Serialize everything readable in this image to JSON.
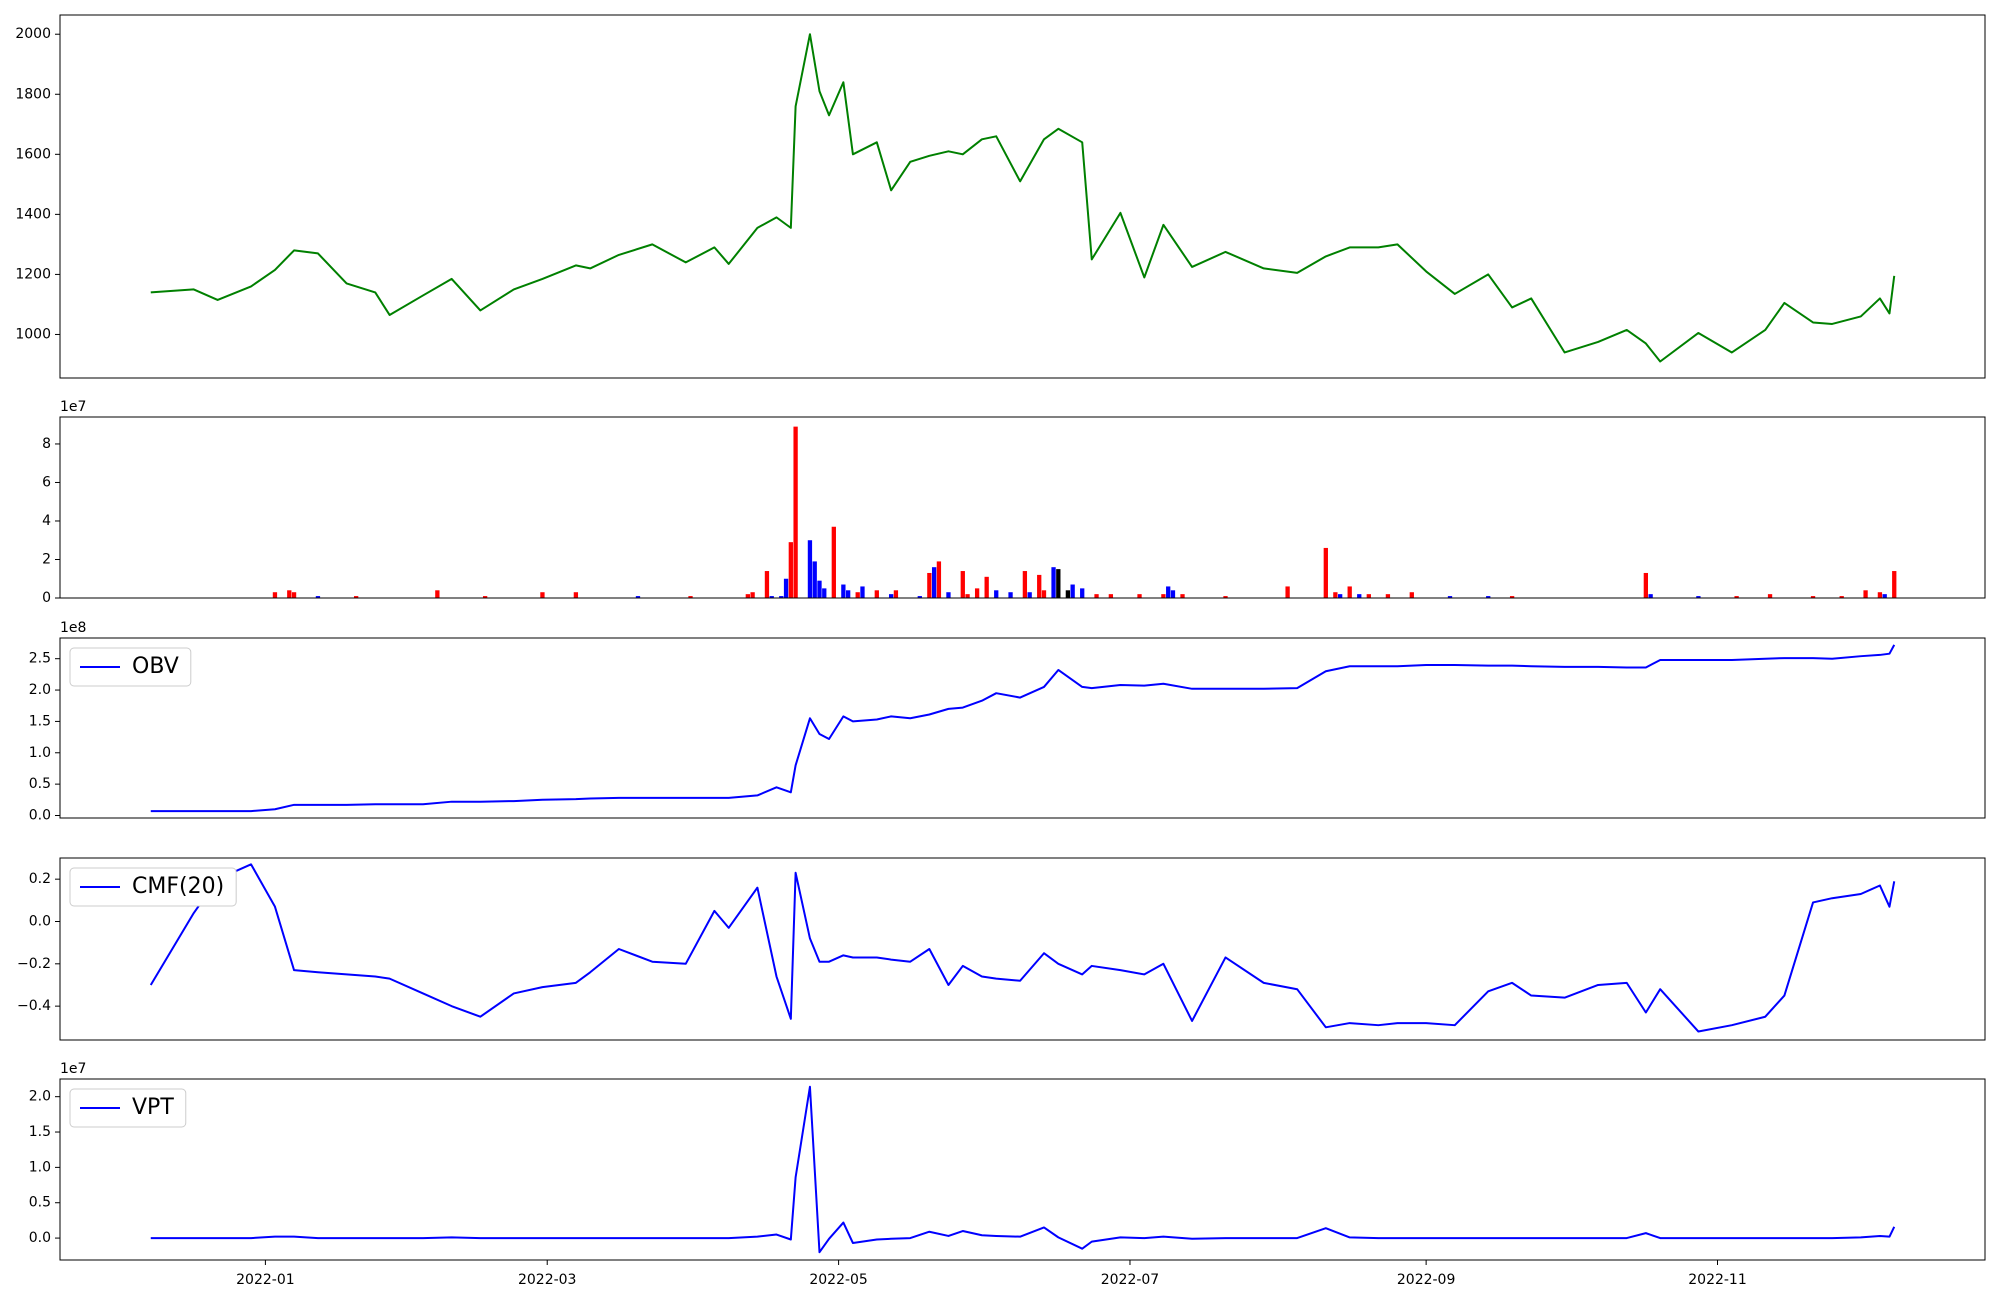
{
  "chart_data": [
    {
      "type": "line",
      "x": [
        "2021-12-08",
        "2021-12-17",
        "2021-12-22",
        "2021-12-29",
        "2022-01-03",
        "2022-01-07",
        "2022-01-12",
        "2022-01-18",
        "2022-01-24",
        "2022-01-27",
        "2022-02-03",
        "2022-02-09",
        "2022-02-15",
        "2022-02-22",
        "2022-02-28",
        "2022-03-07",
        "2022-03-10",
        "2022-03-16",
        "2022-03-23",
        "2022-03-30",
        "2022-04-05",
        "2022-04-08",
        "2022-04-14",
        "2022-04-18",
        "2022-04-21",
        "2022-04-22",
        "2022-04-25",
        "2022-04-27",
        "2022-04-29",
        "2022-05-02",
        "2022-05-04",
        "2022-05-09",
        "2022-05-12",
        "2022-05-16",
        "2022-05-20",
        "2022-05-24",
        "2022-05-27",
        "2022-05-31",
        "2022-06-03",
        "2022-06-08",
        "2022-06-13",
        "2022-06-16",
        "2022-06-21",
        "2022-06-23",
        "2022-06-29",
        "2022-07-04",
        "2022-07-08",
        "2022-07-14",
        "2022-07-21",
        "2022-07-29",
        "2022-08-05",
        "2022-08-11",
        "2022-08-16",
        "2022-08-22",
        "2022-08-26",
        "2022-09-01",
        "2022-09-07",
        "2022-09-14",
        "2022-09-19",
        "2022-09-23",
        "2022-09-30",
        "2022-10-07",
        "2022-10-13",
        "2022-10-17",
        "2022-10-20",
        "2022-10-28",
        "2022-11-04",
        "2022-11-11",
        "2022-11-15",
        "2022-11-21",
        "2022-11-25",
        "2022-12-01",
        "2022-12-05",
        "2022-12-07",
        "2022-12-08"
      ],
      "series": [
        {
          "color": "#008000",
          "values": [
            1140,
            1150,
            1115,
            1160,
            1215,
            1280,
            1270,
            1170,
            1140,
            1065,
            1130,
            1185,
            1080,
            1150,
            1185,
            1230,
            1220,
            1265,
            1300,
            1240,
            1290,
            1235,
            1355,
            1390,
            1355,
            1760,
            2000,
            1810,
            1730,
            1840,
            1600,
            1640,
            1480,
            1575,
            1595,
            1610,
            1600,
            1650,
            1660,
            1510,
            1650,
            1685,
            1640,
            1250,
            1405,
            1190,
            1365,
            1225,
            1275,
            1220,
            1205,
            1260,
            1290,
            1290,
            1300,
            1210,
            1135,
            1200,
            1090,
            1120,
            940,
            975,
            1015,
            970,
            910,
            1005,
            940,
            1015,
            1105,
            1040,
            1035,
            1060,
            1120,
            1070,
            1195
          ]
        }
      ],
      "xlim": [
        "2021-11-19",
        "2022-12-27"
      ],
      "ylim": [
        855,
        2064
      ],
      "yticks": [
        1000,
        1200,
        1400,
        1600,
        1800,
        2000
      ]
    },
    {
      "type": "bar",
      "offset_label": "1e7",
      "x": [
        "2022-01-03",
        "2022-01-06",
        "2022-01-07",
        "2022-01-12",
        "2022-01-20",
        "2022-02-06",
        "2022-02-16",
        "2022-02-28",
        "2022-03-07",
        "2022-03-20",
        "2022-03-31",
        "2022-04-12",
        "2022-04-13",
        "2022-04-16",
        "2022-04-17",
        "2022-04-19",
        "2022-04-20",
        "2022-04-21",
        "2022-04-22",
        "2022-04-25",
        "2022-04-26",
        "2022-04-27",
        "2022-04-28",
        "2022-04-30",
        "2022-05-02",
        "2022-05-03",
        "2022-05-05",
        "2022-05-06",
        "2022-05-09",
        "2022-05-12",
        "2022-05-13",
        "2022-05-18",
        "2022-05-20",
        "2022-05-21",
        "2022-05-22",
        "2022-05-24",
        "2022-05-27",
        "2022-05-28",
        "2022-05-30",
        "2022-06-01",
        "2022-06-03",
        "2022-06-06",
        "2022-06-09",
        "2022-06-10",
        "2022-06-12",
        "2022-06-13",
        "2022-06-15",
        "2022-06-16",
        "2022-06-18",
        "2022-06-19",
        "2022-06-21",
        "2022-06-24",
        "2022-06-27",
        "2022-07-03",
        "2022-07-08",
        "2022-07-09",
        "2022-07-10",
        "2022-07-12",
        "2022-07-21",
        "2022-08-03",
        "2022-08-11",
        "2022-08-13",
        "2022-08-14",
        "2022-08-16",
        "2022-08-18",
        "2022-08-20",
        "2022-08-24",
        "2022-08-29",
        "2022-09-06",
        "2022-09-14",
        "2022-09-19",
        "2022-10-17",
        "2022-10-18",
        "2022-10-28",
        "2022-11-05",
        "2022-11-12",
        "2022-11-21",
        "2022-11-27",
        "2022-12-02",
        "2022-12-05",
        "2022-12-06",
        "2022-12-08"
      ],
      "values": [
        0.3,
        0.4,
        0.3,
        0.1,
        0.1,
        0.4,
        0.1,
        0.3,
        0.3,
        0.1,
        0.1,
        0.2,
        0.3,
        1.4,
        0.1,
        0.1,
        1.0,
        2.9,
        8.9,
        3.0,
        1.9,
        0.9,
        0.5,
        3.7,
        0.7,
        0.4,
        0.3,
        0.6,
        0.4,
        0.2,
        0.4,
        0.1,
        1.3,
        1.6,
        1.9,
        0.3,
        1.4,
        0.2,
        0.5,
        1.1,
        0.4,
        0.3,
        1.4,
        0.3,
        1.2,
        0.4,
        1.6,
        1.5,
        0.4,
        0.7,
        0.5,
        0.2,
        0.2,
        0.2,
        0.2,
        0.6,
        0.4,
        0.2,
        0.1,
        0.6,
        2.6,
        0.3,
        0.2,
        0.6,
        0.2,
        0.2,
        0.2,
        0.3,
        0.1,
        0.1,
        0.1,
        1.3,
        0.2,
        0.1,
        0.1,
        0.2,
        0.1,
        0.1,
        0.4,
        0.3,
        0.2,
        1.4
      ],
      "colors": [
        "#ff0000",
        "#ff0000",
        "#ff0000",
        "#0000ff",
        "#ff0000",
        "#ff0000",
        "#ff0000",
        "#ff0000",
        "#ff0000",
        "#0000ff",
        "#ff0000",
        "#ff0000",
        "#ff0000",
        "#ff0000",
        "#0000ff",
        "#0000ff",
        "#0000ff",
        "#ff0000",
        "#ff0000",
        "#0000ff",
        "#0000ff",
        "#0000ff",
        "#0000ff",
        "#ff0000",
        "#0000ff",
        "#0000ff",
        "#ff0000",
        "#0000ff",
        "#ff0000",
        "#0000ff",
        "#ff0000",
        "#0000ff",
        "#ff0000",
        "#0000ff",
        "#ff0000",
        "#0000ff",
        "#ff0000",
        "#ff0000",
        "#ff0000",
        "#ff0000",
        "#0000ff",
        "#0000ff",
        "#ff0000",
        "#0000ff",
        "#ff0000",
        "#ff0000",
        "#0000ff",
        "#000000",
        "#000000",
        "#0000ff",
        "#0000ff",
        "#ff0000",
        "#ff0000",
        "#ff0000",
        "#ff0000",
        "#0000ff",
        "#0000ff",
        "#ff0000",
        "#ff0000",
        "#ff0000",
        "#ff0000",
        "#ff0000",
        "#0000ff",
        "#ff0000",
        "#0000ff",
        "#ff0000",
        "#ff0000",
        "#ff0000",
        "#0000ff",
        "#0000ff",
        "#ff0000",
        "#ff0000",
        "#0000ff",
        "#0000ff",
        "#ff0000",
        "#ff0000",
        "#ff0000",
        "#ff0000",
        "#ff0000",
        "#ff0000",
        "#0000ff",
        "#ff0000"
      ],
      "xlim": [
        "2021-11-19",
        "2022-12-27"
      ],
      "ylim": [
        0,
        9.4
      ],
      "yticks": [
        {
          "value": 0,
          "label": "0"
        },
        2,
        4,
        6,
        8
      ]
    },
    {
      "type": "line",
      "offset_label": "1e8",
      "legend": "upper left",
      "x": [
        "2021-12-08",
        "2021-12-17",
        "2021-12-22",
        "2021-12-29",
        "2022-01-03",
        "2022-01-07",
        "2022-01-12",
        "2022-01-18",
        "2022-01-24",
        "2022-01-27",
        "2022-02-03",
        "2022-02-09",
        "2022-02-15",
        "2022-02-22",
        "2022-02-28",
        "2022-03-07",
        "2022-03-10",
        "2022-03-16",
        "2022-03-23",
        "2022-03-30",
        "2022-04-05",
        "2022-04-08",
        "2022-04-14",
        "2022-04-18",
        "2022-04-21",
        "2022-04-22",
        "2022-04-25",
        "2022-04-27",
        "2022-04-29",
        "2022-05-02",
        "2022-05-04",
        "2022-05-09",
        "2022-05-12",
        "2022-05-16",
        "2022-05-20",
        "2022-05-24",
        "2022-05-27",
        "2022-05-31",
        "2022-06-03",
        "2022-06-08",
        "2022-06-13",
        "2022-06-16",
        "2022-06-21",
        "2022-06-23",
        "2022-06-29",
        "2022-07-04",
        "2022-07-08",
        "2022-07-14",
        "2022-07-21",
        "2022-07-29",
        "2022-08-05",
        "2022-08-11",
        "2022-08-16",
        "2022-08-22",
        "2022-08-26",
        "2022-09-01",
        "2022-09-07",
        "2022-09-14",
        "2022-09-19",
        "2022-09-23",
        "2022-09-30",
        "2022-10-07",
        "2022-10-13",
        "2022-10-17",
        "2022-10-20",
        "2022-10-28",
        "2022-11-04",
        "2022-11-11",
        "2022-11-15",
        "2022-11-21",
        "2022-11-25",
        "2022-12-01",
        "2022-12-05",
        "2022-12-07",
        "2022-12-08"
      ],
      "series": [
        {
          "name": "OBV",
          "color": "#0000ff",
          "values": [
            0.07,
            0.07,
            0.07,
            0.07,
            0.1,
            0.17,
            0.17,
            0.17,
            0.18,
            0.18,
            0.18,
            0.22,
            0.22,
            0.23,
            0.25,
            0.26,
            0.27,
            0.28,
            0.28,
            0.28,
            0.28,
            0.28,
            0.32,
            0.45,
            0.37,
            0.8,
            1.55,
            1.3,
            1.22,
            1.58,
            1.5,
            1.53,
            1.58,
            1.55,
            1.61,
            1.7,
            1.72,
            1.83,
            1.95,
            1.88,
            2.05,
            2.32,
            2.05,
            2.03,
            2.08,
            2.07,
            2.1,
            2.02,
            2.02,
            2.02,
            2.03,
            2.3,
            2.38,
            2.38,
            2.38,
            2.4,
            2.4,
            2.39,
            2.39,
            2.38,
            2.37,
            2.37,
            2.36,
            2.36,
            2.48,
            2.48,
            2.48,
            2.5,
            2.51,
            2.51,
            2.5,
            2.54,
            2.56,
            2.58,
            2.72
          ]
        }
      ],
      "xlim": [
        "2021-11-19",
        "2022-12-27"
      ],
      "ylim": [
        -0.04,
        2.83
      ],
      "yticks": [
        {
          "value": 0,
          "label": "0.0"
        },
        0.5,
        {
          "value": 1,
          "label": "1.0"
        },
        1.5,
        {
          "value": 2,
          "label": "2.0"
        },
        2.5
      ]
    },
    {
      "type": "line",
      "legend": "upper left",
      "x": [
        "2021-12-08",
        "2021-12-17",
        "2021-12-22",
        "2021-12-29",
        "2022-01-03",
        "2022-01-07",
        "2022-01-12",
        "2022-01-18",
        "2022-01-24",
        "2022-01-27",
        "2022-02-03",
        "2022-02-09",
        "2022-02-15",
        "2022-02-22",
        "2022-02-28",
        "2022-03-07",
        "2022-03-10",
        "2022-03-16",
        "2022-03-23",
        "2022-03-30",
        "2022-04-05",
        "2022-04-08",
        "2022-04-14",
        "2022-04-18",
        "2022-04-21",
        "2022-04-22",
        "2022-04-25",
        "2022-04-27",
        "2022-04-29",
        "2022-05-02",
        "2022-05-04",
        "2022-05-09",
        "2022-05-12",
        "2022-05-16",
        "2022-05-20",
        "2022-05-24",
        "2022-05-27",
        "2022-05-31",
        "2022-06-03",
        "2022-06-08",
        "2022-06-13",
        "2022-06-16",
        "2022-06-21",
        "2022-06-23",
        "2022-06-29",
        "2022-07-04",
        "2022-07-08",
        "2022-07-14",
        "2022-07-21",
        "2022-07-29",
        "2022-08-05",
        "2022-08-11",
        "2022-08-16",
        "2022-08-22",
        "2022-08-26",
        "2022-09-01",
        "2022-09-07",
        "2022-09-14",
        "2022-09-19",
        "2022-09-23",
        "2022-09-30",
        "2022-10-07",
        "2022-10-13",
        "2022-10-17",
        "2022-10-20",
        "2022-10-28",
        "2022-11-04",
        "2022-11-11",
        "2022-11-15",
        "2022-11-21",
        "2022-11-25",
        "2022-12-01",
        "2022-12-05",
        "2022-12-07",
        "2022-12-08"
      ],
      "series": [
        {
          "name": "CMF(20)",
          "color": "#0000ff",
          "values": [
            -0.3,
            0.04,
            0.2,
            0.27,
            0.07,
            -0.23,
            -0.24,
            -0.25,
            -0.26,
            -0.27,
            -0.34,
            -0.4,
            -0.45,
            -0.34,
            -0.31,
            -0.29,
            -0.24,
            -0.13,
            -0.19,
            -0.2,
            0.05,
            -0.03,
            0.16,
            -0.26,
            -0.46,
            0.23,
            -0.08,
            -0.19,
            -0.19,
            -0.16,
            -0.17,
            -0.17,
            -0.18,
            -0.19,
            -0.13,
            -0.3,
            -0.21,
            -0.26,
            -0.27,
            -0.28,
            -0.15,
            -0.2,
            -0.25,
            -0.21,
            -0.23,
            -0.25,
            -0.2,
            -0.47,
            -0.17,
            -0.29,
            -0.32,
            -0.5,
            -0.48,
            -0.49,
            -0.48,
            -0.48,
            -0.49,
            -0.33,
            -0.29,
            -0.35,
            -0.36,
            -0.3,
            -0.29,
            -0.43,
            -0.32,
            -0.52,
            -0.49,
            -0.45,
            -0.35,
            0.09,
            0.11,
            0.13,
            0.17,
            0.07,
            0.19
          ]
        }
      ],
      "xlim": [
        "2021-11-19",
        "2022-12-27"
      ],
      "ylim": [
        -0.56,
        0.3
      ],
      "yticks": [
        {
          "value": -0.4,
          "label": "−0.4"
        },
        {
          "value": -0.2,
          "label": "−0.2"
        },
        {
          "value": 0,
          "label": "0.0"
        },
        0.2
      ]
    },
    {
      "type": "line",
      "offset_label": "1e7",
      "legend": "upper left",
      "x": [
        "2021-12-08",
        "2021-12-17",
        "2021-12-22",
        "2021-12-29",
        "2022-01-03",
        "2022-01-07",
        "2022-01-12",
        "2022-01-18",
        "2022-01-24",
        "2022-01-27",
        "2022-02-03",
        "2022-02-09",
        "2022-02-15",
        "2022-02-22",
        "2022-02-28",
        "2022-03-07",
        "2022-03-10",
        "2022-03-16",
        "2022-03-23",
        "2022-03-30",
        "2022-04-05",
        "2022-04-08",
        "2022-04-14",
        "2022-04-18",
        "2022-04-21",
        "2022-04-22",
        "2022-04-25",
        "2022-04-27",
        "2022-04-29",
        "2022-05-02",
        "2022-05-04",
        "2022-05-09",
        "2022-05-12",
        "2022-05-16",
        "2022-05-20",
        "2022-05-24",
        "2022-05-27",
        "2022-05-31",
        "2022-06-03",
        "2022-06-08",
        "2022-06-13",
        "2022-06-16",
        "2022-06-21",
        "2022-06-23",
        "2022-06-29",
        "2022-07-04",
        "2022-07-08",
        "2022-07-14",
        "2022-07-21",
        "2022-07-29",
        "2022-08-05",
        "2022-08-11",
        "2022-08-16",
        "2022-08-22",
        "2022-08-26",
        "2022-09-01",
        "2022-09-07",
        "2022-09-14",
        "2022-09-19",
        "2022-09-23",
        "2022-09-30",
        "2022-10-07",
        "2022-10-13",
        "2022-10-17",
        "2022-10-20",
        "2022-10-28",
        "2022-11-04",
        "2022-11-11",
        "2022-11-15",
        "2022-11-21",
        "2022-11-25",
        "2022-12-01",
        "2022-12-05",
        "2022-12-07",
        "2022-12-08"
      ],
      "series": [
        {
          "name": "VPT",
          "color": "#0000ff",
          "values": [
            0,
            0,
            0,
            0,
            0.02,
            0.02,
            0,
            0,
            0,
            0,
            0,
            0.01,
            0,
            0,
            0,
            0,
            0,
            0,
            0,
            0,
            0,
            0,
            0.02,
            0.05,
            -0.02,
            0.86,
            2.14,
            -0.2,
            -0.01,
            0.22,
            -0.07,
            -0.02,
            -0.01,
            0,
            0.09,
            0.03,
            0.1,
            0.04,
            0.03,
            0.02,
            0.15,
            0.01,
            -0.15,
            -0.05,
            0.01,
            0,
            0.02,
            -0.01,
            0,
            0,
            0,
            0.14,
            0.01,
            0,
            0,
            0,
            0,
            0,
            0,
            0,
            0,
            0,
            0,
            0.07,
            0,
            0,
            0,
            0,
            0,
            0,
            0,
            0.01,
            0.03,
            0.02,
            0.16
          ]
        }
      ],
      "xlim": [
        "2021-11-19",
        "2022-12-27"
      ],
      "ylim": [
        -0.31,
        2.25
      ],
      "yticks": [
        {
          "value": 0,
          "label": "0.0"
        },
        0.5,
        {
          "value": 1,
          "label": "1.0"
        },
        1.5,
        {
          "value": 2,
          "label": "2.0"
        }
      ],
      "xticks": [
        {
          "value": "2022-01-01",
          "label": "2022-01"
        },
        {
          "value": "2022-03-01",
          "label": "2022-03"
        },
        {
          "value": "2022-05-01",
          "label": "2022-05"
        },
        {
          "value": "2022-07-01",
          "label": "2022-07"
        },
        {
          "value": "2022-09-01",
          "label": "2022-09"
        },
        {
          "value": "2022-11-01",
          "label": "2022-11"
        }
      ]
    }
  ]
}
